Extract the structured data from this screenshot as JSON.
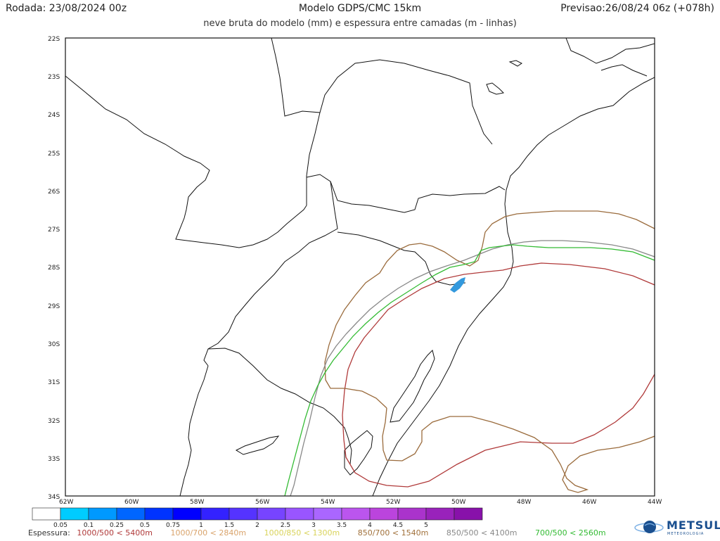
{
  "header": {
    "run": "Rodada: 23/08/2024 00z",
    "model": "Modelo GDPS/CMC 15km",
    "forecast": "Previsao:26/08/24 06z (+078h)",
    "subtitle": "neve bruta do modelo (mm) e espessura entre camadas (m - linhas)"
  },
  "axes": {
    "lat_labels": [
      "22S",
      "23S",
      "24S",
      "25S",
      "26S",
      "27S",
      "28S",
      "29S",
      "30S",
      "31S",
      "32S",
      "33S",
      "34S"
    ],
    "lon_labels": [
      "62W",
      "60W",
      "58W",
      "56W",
      "54W",
      "52W",
      "50W",
      "48W",
      "46W",
      "44W"
    ]
  },
  "colorbar": {
    "ticks": [
      "0.05",
      "0.1",
      "0.25",
      "0.5",
      "0.75",
      "1",
      "1.5",
      "2",
      "2.5",
      "3",
      "3.5",
      "4",
      "4.5",
      "5"
    ],
    "colors": [
      "#ffffff",
      "#00ccff",
      "#0099ff",
      "#0066ff",
      "#0033ff",
      "#0000ff",
      "#3322ff",
      "#5533ff",
      "#7744ff",
      "#9955ff",
      "#aa66ff",
      "#bb55ee",
      "#bb44dd",
      "#aa33cc",
      "#9922bb",
      "#8811aa"
    ]
  },
  "legend": {
    "title": "Espessura:",
    "items": [
      {
        "label": "1000/500 < 5400m",
        "color": "#b03a3a"
      },
      {
        "label": "1000/700 < 2840m",
        "color": "#d9a36b"
      },
      {
        "label": "1000/850 < 1300m",
        "color": "#d9d35a"
      },
      {
        "label": "850/700 < 1540m",
        "color": "#a0703a"
      },
      {
        "label": "850/500 < 4100m",
        "color": "#888888"
      },
      {
        "label": "700/500 < 2560m",
        "color": "#33bb33"
      }
    ]
  },
  "contour_colors": {
    "t1000_500": "#b03a3a",
    "t850_700": "#9a6b3c",
    "t850_500": "#888888",
    "t700_500": "#33bb33"
  },
  "snow_color": "#3399dd",
  "logo": {
    "brand": "METSUL",
    "tagline": "METEOROLOGIA"
  }
}
